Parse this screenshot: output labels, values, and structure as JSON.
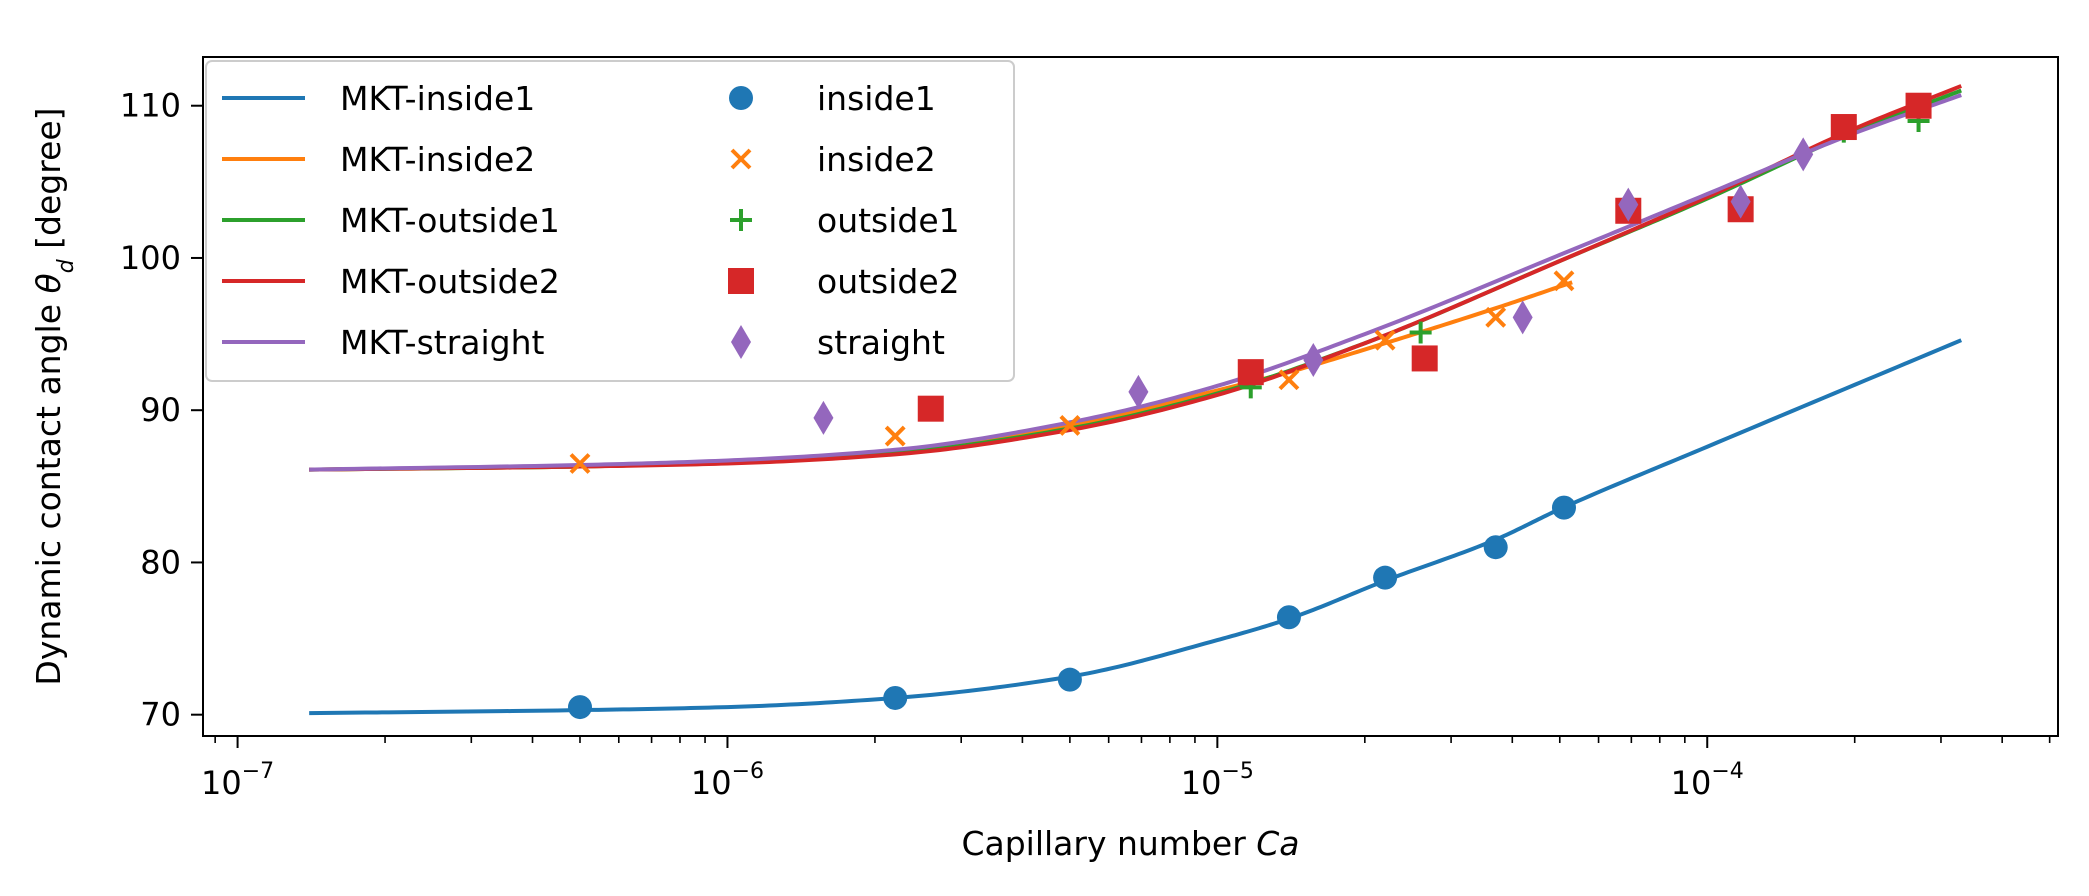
{
  "chart_data": {
    "type": "scatter",
    "xlabel": "Capillary number Ca",
    "xlabel_parts": [
      "Capillary number ",
      "Ca"
    ],
    "ylabel": "Dynamic contact angle θd [degree]",
    "ylabel_parts": [
      "Dynamic contact angle ",
      "θ",
      "d",
      " [degree]"
    ],
    "x_scale": "log",
    "xlim": [
      8.5e-08,
      0.00052
    ],
    "ylim": [
      68.6,
      113.2
    ],
    "x_ticks": [
      {
        "value": 1e-07,
        "base": "10",
        "exp": "−7"
      },
      {
        "value": 1e-06,
        "base": "10",
        "exp": "−6"
      },
      {
        "value": 1e-05,
        "base": "10",
        "exp": "−5"
      },
      {
        "value": 0.0001,
        "base": "10",
        "exp": "−4"
      }
    ],
    "y_ticks": [
      70,
      80,
      90,
      100,
      110
    ],
    "grid": false,
    "legend_position": "upper-left",
    "colors": {
      "inside1": "#1f77b4",
      "inside2": "#ff7f0e",
      "outside1": "#2ca02c",
      "outside2": "#d62728",
      "straight": "#9467bd"
    },
    "fit_lines": [
      {
        "name": "MKT-inside1",
        "color": "#1f77b4",
        "x": [
          1.4e-07,
          5e-07,
          1e-06,
          2.2e-06,
          5e-06,
          1e-05,
          1.4e-05,
          2.2e-05,
          3.7e-05,
          5e-05,
          0.0001,
          0.00033
        ],
        "y": [
          70.1,
          70.3,
          70.5,
          71.1,
          72.5,
          74.9,
          76.3,
          78.8,
          81.5,
          83.5,
          87.6,
          94.6
        ]
      },
      {
        "name": "MKT-inside2",
        "color": "#ff7f0e",
        "x": [
          1.4e-07,
          5e-07,
          1e-06,
          2.2e-06,
          5e-06,
          1e-05,
          1.4e-05,
          2.2e-05,
          3.7e-05,
          5.3e-05
        ],
        "y": [
          86.1,
          86.3,
          86.6,
          87.3,
          89.0,
          91.3,
          92.5,
          94.4,
          96.7,
          98.4
        ]
      },
      {
        "name": "MKT-outside1",
        "color": "#2ca02c",
        "x": [
          1.4e-07,
          5e-07,
          1e-06,
          2.2e-06,
          5e-06,
          1e-05,
          2e-05,
          5e-05,
          0.0001,
          0.0002,
          0.00033
        ],
        "y": [
          86.1,
          86.3,
          86.6,
          87.2,
          88.8,
          91.1,
          94.4,
          99.8,
          103.9,
          108.3,
          111.0
        ]
      },
      {
        "name": "MKT-outside2",
        "color": "#d62728",
        "x": [
          1.4e-07,
          5e-07,
          1e-06,
          2.2e-06,
          5e-06,
          1e-05,
          2e-05,
          5e-05,
          0.0001,
          0.0002,
          0.00033
        ],
        "y": [
          86.1,
          86.3,
          86.5,
          87.1,
          88.7,
          91.0,
          94.4,
          99.8,
          104.0,
          108.5,
          111.3
        ]
      },
      {
        "name": "MKT-straight",
        "color": "#9467bd",
        "x": [
          1.4e-07,
          5e-07,
          1e-06,
          2.2e-06,
          5e-06,
          1e-05,
          2e-05,
          5e-05,
          0.0001,
          0.0002,
          0.00033
        ],
        "y": [
          86.1,
          86.4,
          86.7,
          87.4,
          89.2,
          91.6,
          95.0,
          100.2,
          104.2,
          108.2,
          110.7
        ]
      }
    ],
    "scatter_series": [
      {
        "name": "inside1",
        "marker": "circle",
        "color": "#1f77b4",
        "x": [
          5e-07,
          2.2e-06,
          5e-06,
          1.4e-05,
          2.2e-05,
          3.7e-05,
          5.1e-05
        ],
        "y": [
          70.5,
          71.1,
          72.3,
          76.4,
          79.0,
          81.0,
          83.6
        ]
      },
      {
        "name": "inside2",
        "marker": "x",
        "color": "#ff7f0e",
        "x": [
          5e-07,
          2.2e-06,
          5e-06,
          1.4e-05,
          2.2e-05,
          3.7e-05,
          5.1e-05
        ],
        "y": [
          86.5,
          88.3,
          89.0,
          92.0,
          94.6,
          96.1,
          98.5
        ]
      },
      {
        "name": "outside1",
        "marker": "plus",
        "color": "#2ca02c",
        "x": [
          1.17e-05,
          2.6e-05,
          6.9e-05,
          0.000117,
          0.00019,
          0.00027
        ],
        "y": [
          91.5,
          95.1,
          103.0,
          103.5,
          108.3,
          109.0
        ]
      },
      {
        "name": "outside2",
        "marker": "square",
        "color": "#d62728",
        "x": [
          2.6e-06,
          1.17e-05,
          2.65e-05,
          6.9e-05,
          0.000117,
          0.00019,
          0.00027
        ],
        "y": [
          90.1,
          92.5,
          93.4,
          103.1,
          103.2,
          108.6,
          110.0
        ]
      },
      {
        "name": "straight",
        "marker": "thin_diamond",
        "color": "#9467bd",
        "x": [
          1.57e-06,
          6.9e-06,
          1.57e-05,
          4.2e-05,
          6.9e-05,
          0.000117,
          0.000157
        ],
        "y": [
          89.5,
          91.2,
          93.3,
          96.1,
          103.5,
          103.7,
          106.8
        ]
      }
    ],
    "legend": [
      {
        "label": "MKT-inside1",
        "kind": "line",
        "color": "#1f77b4"
      },
      {
        "label": "MKT-inside2",
        "kind": "line",
        "color": "#ff7f0e"
      },
      {
        "label": "MKT-outside1",
        "kind": "line",
        "color": "#2ca02c"
      },
      {
        "label": "MKT-outside2",
        "kind": "line",
        "color": "#d62728"
      },
      {
        "label": "MKT-straight",
        "kind": "line",
        "color": "#9467bd"
      },
      {
        "label": "inside1",
        "kind": "circle",
        "color": "#1f77b4"
      },
      {
        "label": "inside2",
        "kind": "x",
        "color": "#ff7f0e"
      },
      {
        "label": "outside1",
        "kind": "plus",
        "color": "#2ca02c"
      },
      {
        "label": "outside2",
        "kind": "square",
        "color": "#d62728"
      },
      {
        "label": "straight",
        "kind": "thin_diamond",
        "color": "#9467bd"
      }
    ]
  }
}
